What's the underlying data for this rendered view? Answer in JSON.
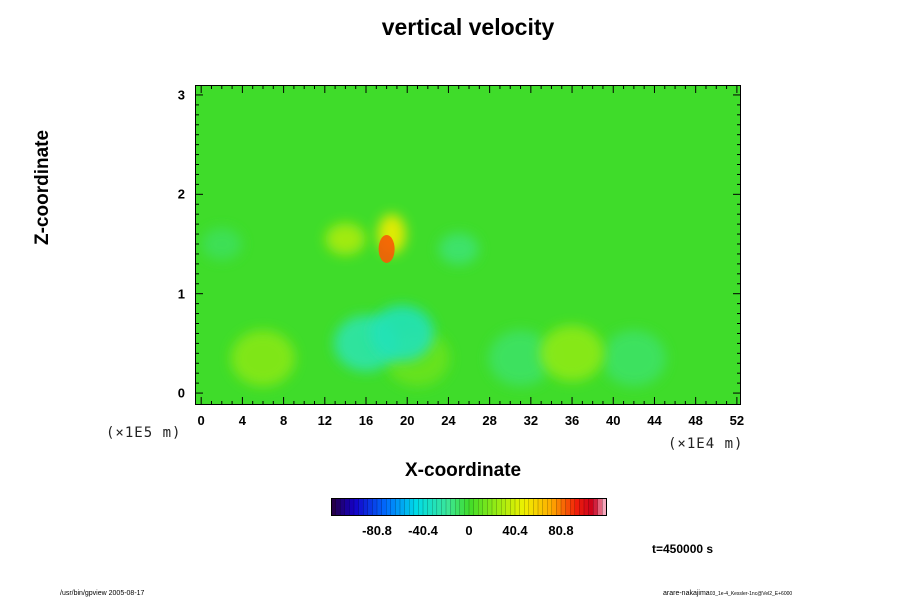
{
  "chart_data": {
    "type": "heatmap",
    "title": "vertical velocity",
    "xlabel": "X-coordinate",
    "ylabel": "Z-coordinate",
    "x_scale_note": "(×1E4 m)",
    "y_scale_note": "(×1E5 m)",
    "xlim": [
      -0.6,
      52.4
    ],
    "ylim": [
      -0.12,
      3.1
    ],
    "x_ticks": [
      "0",
      "4",
      "8",
      "12",
      "16",
      "20",
      "24",
      "28",
      "32",
      "36",
      "40",
      "44",
      "48",
      "52"
    ],
    "x_tick_values": [
      0,
      4,
      8,
      12,
      16,
      20,
      24,
      28,
      32,
      36,
      40,
      44,
      48,
      52
    ],
    "y_ticks": [
      "0",
      "1",
      "2",
      "3"
    ],
    "y_tick_values": [
      0,
      1,
      2,
      3
    ],
    "colorbar": {
      "range": [
        -121.2,
        121.2
      ],
      "ticks": [
        "-80.8",
        "-40.4",
        "0",
        "40.4",
        "80.8"
      ],
      "tick_values": [
        -80.8,
        -40.4,
        0,
        40.4,
        80.8
      ]
    },
    "features": [
      {
        "kind": "updraft_peak",
        "x": 18.0,
        "z": 1.45,
        "value": 85
      },
      {
        "kind": "updraft",
        "x": 18.5,
        "z": 1.6,
        "value": 50
      },
      {
        "kind": "updraft",
        "x": 14.0,
        "z": 1.55,
        "value": 30
      },
      {
        "kind": "downdraft",
        "x": 19.5,
        "z": 0.6,
        "value": -30
      },
      {
        "kind": "downdraft",
        "x": 16.0,
        "z": 0.5,
        "value": -25
      },
      {
        "kind": "updraft",
        "x": 6.0,
        "z": 0.35,
        "value": 20
      },
      {
        "kind": "updraft",
        "x": 36.0,
        "z": 0.4,
        "value": 22
      },
      {
        "kind": "updraft",
        "x": 21.0,
        "z": 0.35,
        "value": 12
      },
      {
        "kind": "downdraft",
        "x": 31.0,
        "z": 0.35,
        "value": -10
      },
      {
        "kind": "downdraft",
        "x": 42.0,
        "z": 0.35,
        "value": -10
      },
      {
        "kind": "downdraft",
        "x": 25.0,
        "z": 1.45,
        "value": -12
      },
      {
        "kind": "downdraft",
        "x": 2.0,
        "z": 1.5,
        "value": -8
      }
    ]
  },
  "time_label": "t=450000 s",
  "footer_left": "/usr/bin/gpview 2005-08-17",
  "footer_right_main": "arare-nakajima",
  "footer_right_small": "03_1e-4_Kessler-1nc@Vel2_E+6000"
}
